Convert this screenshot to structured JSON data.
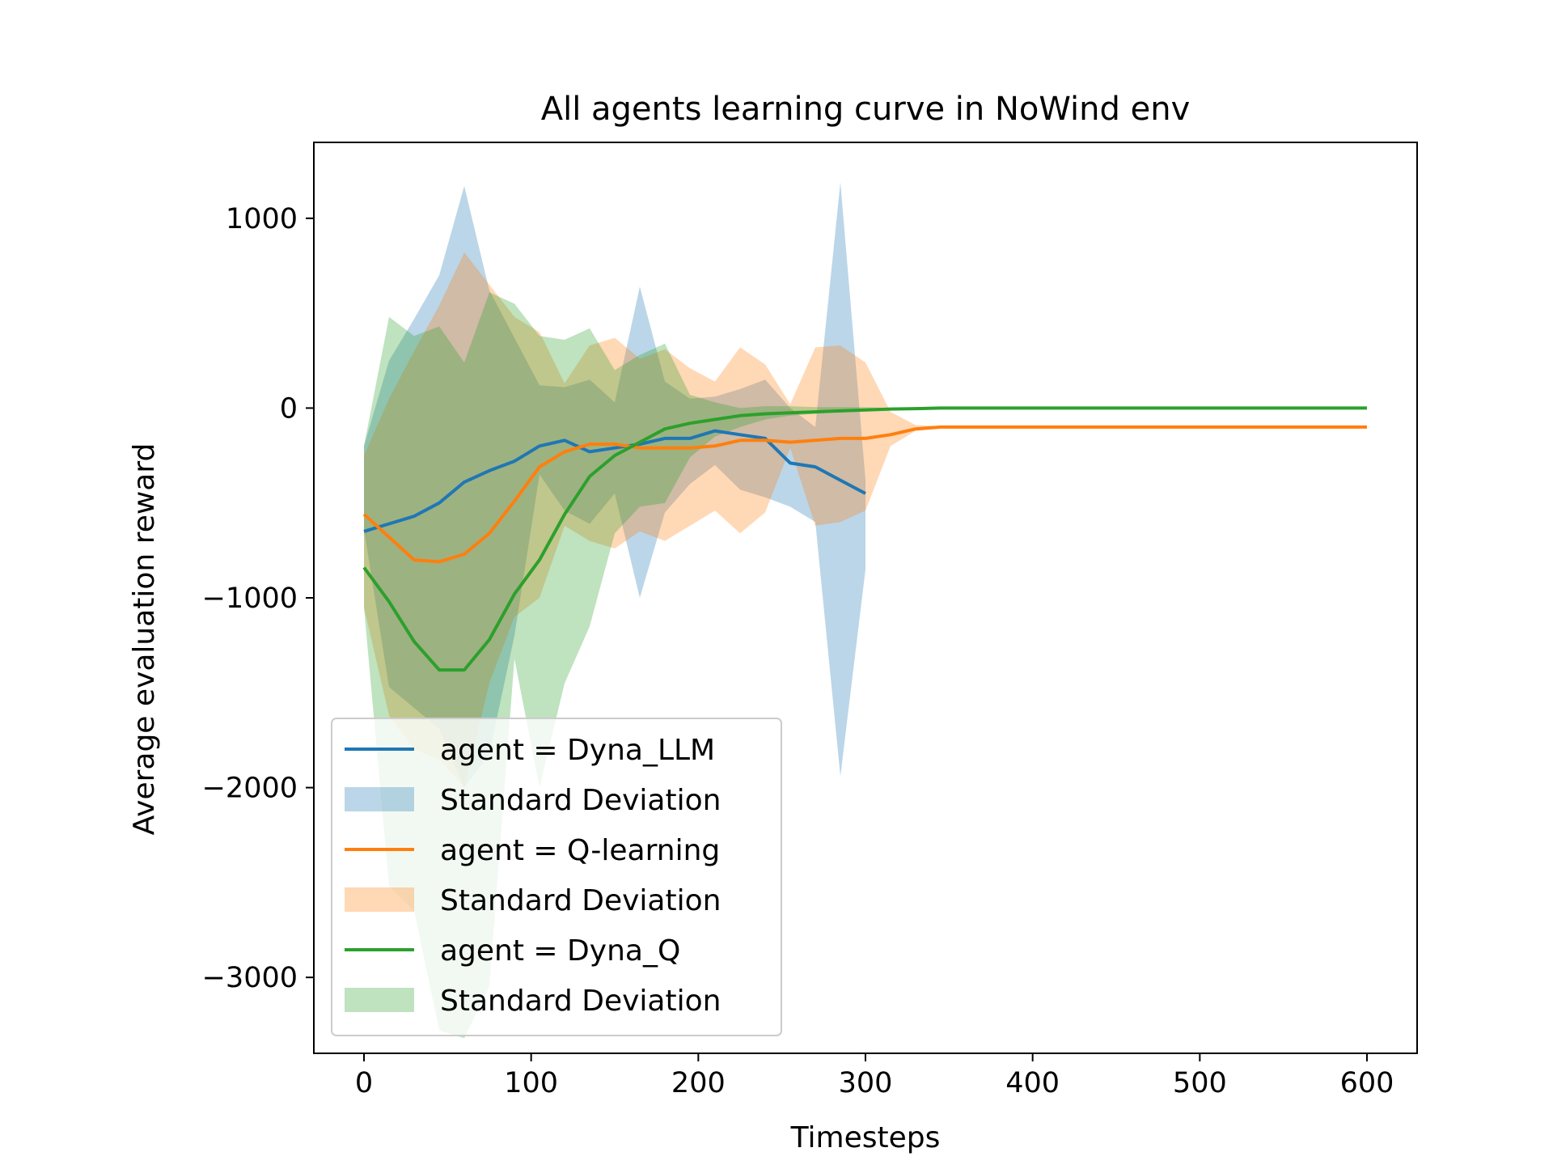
{
  "chart_data": {
    "type": "line",
    "title": "All agents learning curve in NoWind env",
    "xlabel": "Timesteps",
    "ylabel": "Average evaluation reward",
    "xlim": [
      -30,
      630
    ],
    "ylim": [
      -3400,
      1400
    ],
    "xticks": [
      0,
      100,
      200,
      300,
      400,
      500,
      600
    ],
    "yticks": [
      1000,
      0,
      -1000,
      -2000,
      -3000
    ],
    "xtick_labels": [
      "0",
      "100",
      "200",
      "300",
      "400",
      "500",
      "600"
    ],
    "ytick_labels": [
      "1000",
      "0",
      "−1000",
      "−2000",
      "−3000"
    ],
    "grid": false,
    "legend_position": "lower-left",
    "legend": [
      {
        "label": "agent = Dyna_LLM",
        "kind": "line",
        "color": "#1f77b4"
      },
      {
        "label": "Standard Deviation",
        "kind": "patch",
        "color": "#1f77b4"
      },
      {
        "label": "agent = Q-learning",
        "kind": "line",
        "color": "#ff7f0e"
      },
      {
        "label": "Standard Deviation",
        "kind": "patch",
        "color": "#ff7f0e"
      },
      {
        "label": "agent = Dyna_Q",
        "kind": "line",
        "color": "#2ca02c"
      },
      {
        "label": "Standard Deviation",
        "kind": "patch",
        "color": "#2ca02c"
      }
    ],
    "series": [
      {
        "name": "agent = Dyna_LLM",
        "color": "#1f77b4",
        "x": [
          0,
          15,
          30,
          45,
          60,
          75,
          90,
          105,
          120,
          135,
          150,
          165,
          180,
          195,
          210,
          225,
          240,
          255,
          270,
          285,
          300
        ],
        "y": [
          -650,
          -610,
          -570,
          -500,
          -390,
          -330,
          -280,
          -200,
          -170,
          -230,
          -210,
          -190,
          -160,
          -160,
          -120,
          -140,
          -160,
          -290,
          -310,
          -380,
          -450
        ],
        "lower": [
          -640,
          -1470,
          -1580,
          -1690,
          -2000,
          -1820,
          -1200,
          -350,
          -540,
          -610,
          -450,
          -1000,
          -550,
          -400,
          -300,
          -430,
          -470,
          -520,
          -600,
          -1940,
          -850
        ],
        "upper": [
          -200,
          250,
          470,
          700,
          1170,
          620,
          370,
          120,
          110,
          150,
          30,
          640,
          140,
          50,
          60,
          100,
          150,
          0,
          -100,
          1190,
          -380
        ]
      },
      {
        "name": "agent = Q-learning",
        "color": "#ff7f0e",
        "x": [
          0,
          15,
          30,
          45,
          60,
          75,
          90,
          105,
          120,
          135,
          150,
          165,
          180,
          195,
          210,
          225,
          240,
          255,
          270,
          285,
          300,
          315,
          330,
          345,
          400,
          450,
          500,
          550,
          600
        ],
        "y": [
          -560,
          -680,
          -800,
          -810,
          -770,
          -660,
          -490,
          -310,
          -230,
          -190,
          -190,
          -210,
          -210,
          -210,
          -200,
          -170,
          -170,
          -180,
          -170,
          -160,
          -160,
          -140,
          -110,
          -100,
          -100,
          -100,
          -100,
          -100,
          -100
        ],
        "lower": [
          -1050,
          -1620,
          -1800,
          -1850,
          -2000,
          -1450,
          -1100,
          -1000,
          -620,
          -700,
          -740,
          -650,
          -700,
          -620,
          -540,
          -660,
          -550,
          -210,
          -620,
          -600,
          -540,
          -200,
          -120,
          -105,
          -100,
          -100,
          -100,
          -100,
          -100
        ],
        "upper": [
          -250,
          50,
          300,
          540,
          820,
          650,
          480,
          400,
          130,
          330,
          370,
          260,
          310,
          210,
          140,
          320,
          230,
          20,
          320,
          330,
          240,
          -20,
          -90,
          -95,
          -100,
          -100,
          -100,
          -100,
          -100
        ]
      },
      {
        "name": "agent = Dyna_Q",
        "color": "#2ca02c",
        "x": [
          0,
          15,
          30,
          45,
          60,
          75,
          90,
          105,
          120,
          135,
          150,
          165,
          180,
          195,
          210,
          225,
          240,
          255,
          270,
          285,
          300,
          315,
          330,
          345,
          400,
          450,
          500,
          550,
          600
        ],
        "y": [
          -840,
          -1020,
          -1230,
          -1380,
          -1380,
          -1220,
          -980,
          -800,
          -560,
          -360,
          -250,
          -180,
          -110,
          -80,
          -60,
          -40,
          -30,
          -25,
          -20,
          -15,
          -10,
          -5,
          -3,
          0,
          0,
          0,
          0,
          0,
          0
        ],
        "lower": [
          -1050,
          -2520,
          -2650,
          -3280,
          -3320,
          -3050,
          -1320,
          -2000,
          -1450,
          -1150,
          -660,
          -520,
          -500,
          -260,
          -150,
          -100,
          -60,
          -40,
          -30,
          -20,
          -15,
          -10,
          -5,
          -2,
          0,
          0,
          0,
          0,
          0
        ],
        "upper": [
          -200,
          480,
          380,
          430,
          240,
          610,
          550,
          380,
          360,
          420,
          200,
          280,
          340,
          70,
          30,
          0,
          10,
          10,
          5,
          5,
          5,
          0,
          0,
          0,
          0,
          0,
          0,
          0,
          0
        ]
      }
    ]
  }
}
